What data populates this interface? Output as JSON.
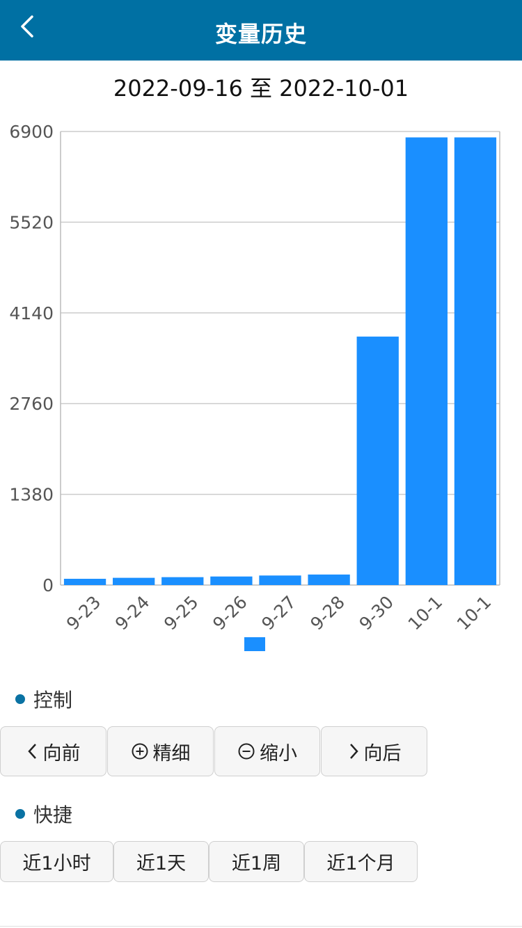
{
  "header": {
    "title": "变量历史"
  },
  "date_range": "2022-09-16 至 2022-10-01",
  "chart_data": {
    "type": "bar",
    "categories": [
      "9-23",
      "9-24",
      "9-25",
      "9-26",
      "9-27",
      "9-28",
      "9-30",
      "10-1",
      "10-1"
    ],
    "values": [
      95,
      110,
      120,
      130,
      145,
      160,
      3780,
      6810,
      6810
    ],
    "ylim": [
      0,
      6900
    ],
    "yticks": [
      0,
      1380,
      2760,
      4140,
      5520,
      6900
    ],
    "grid": true,
    "color": "#1a8fff"
  },
  "controls": {
    "title": "控制",
    "buttons": [
      "向前",
      "精细",
      "缩小",
      "向后"
    ]
  },
  "shortcuts": {
    "title": "快捷",
    "buttons": [
      "近1小时",
      "近1天",
      "近1周",
      "近1个月"
    ]
  },
  "colors": {
    "header": "#0070a3",
    "bar": "#1a8fff",
    "dot": "#0a72a3"
  }
}
